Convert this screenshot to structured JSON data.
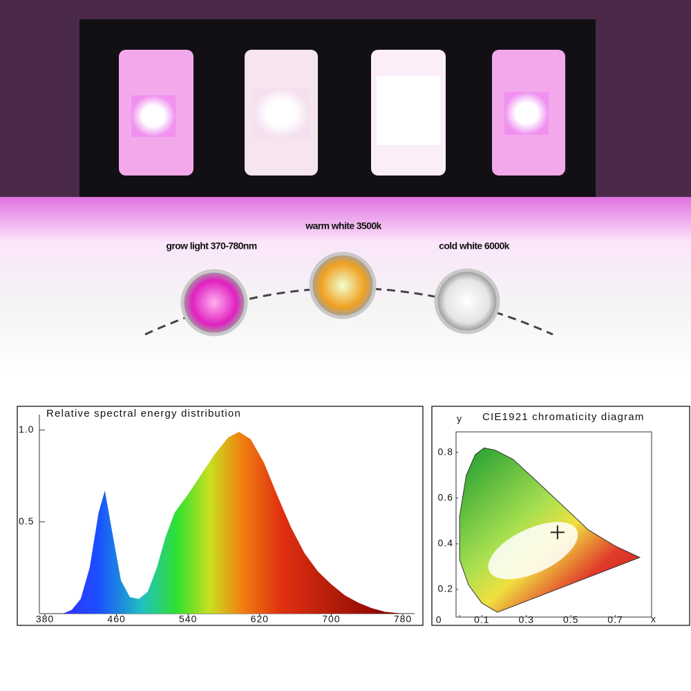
{
  "labels": {
    "grow": "grow light 370-780nm",
    "warm": "warm white 3500k",
    "cold": "cold white 6000k"
  },
  "chart_data": [
    {
      "type": "area",
      "title": "Relative spectral energy distribution",
      "x": [
        400,
        410,
        420,
        430,
        440,
        447,
        455,
        465,
        475,
        485,
        495,
        505,
        515,
        525,
        540,
        555,
        570,
        585,
        597,
        610,
        625,
        640,
        655,
        670,
        685,
        700,
        715,
        730,
        745,
        760,
        780
      ],
      "values": [
        0,
        0.02,
        0.08,
        0.25,
        0.55,
        0.67,
        0.45,
        0.18,
        0.09,
        0.08,
        0.12,
        0.25,
        0.42,
        0.55,
        0.65,
        0.76,
        0.87,
        0.96,
        0.99,
        0.95,
        0.82,
        0.64,
        0.47,
        0.33,
        0.23,
        0.16,
        0.1,
        0.06,
        0.03,
        0.01,
        0
      ],
      "xlim": [
        380,
        780
      ],
      "ylim": [
        0,
        1.05
      ],
      "xticks": [
        380,
        460,
        540,
        620,
        700,
        780
      ],
      "yticks": [
        0.5,
        {
          "value": 1,
          "label": "1.0"
        }
      ]
    },
    {
      "type": "scatter",
      "title": "CIE1921 chromaticity diagram",
      "x_label": "x",
      "y_label": "y",
      "xlim": [
        -0.016,
        0.863
      ],
      "ylim": [
        0.079,
        0.89
      ],
      "xticks": [
        0,
        0.1,
        0.3,
        0.5,
        0.7
      ],
      "yticks": [
        0.2,
        0.4,
        0.6,
        0.8
      ],
      "series": [
        {
          "x": [
            0.17,
            0.1,
            0.04,
            0.0,
            0.0,
            0.03,
            0.07,
            0.11,
            0.16,
            0.24,
            0.34,
            0.46,
            0.58,
            0.7,
            0.81,
            0.17
          ],
          "values": [
            0.1,
            0.14,
            0.22,
            0.33,
            0.52,
            0.7,
            0.79,
            0.82,
            0.81,
            0.77,
            0.68,
            0.57,
            0.46,
            0.39,
            0.34,
            0.1
          ]
        },
        {
          "x": [
            0.44
          ],
          "values": [
            0.45
          ]
        }
      ]
    }
  ]
}
